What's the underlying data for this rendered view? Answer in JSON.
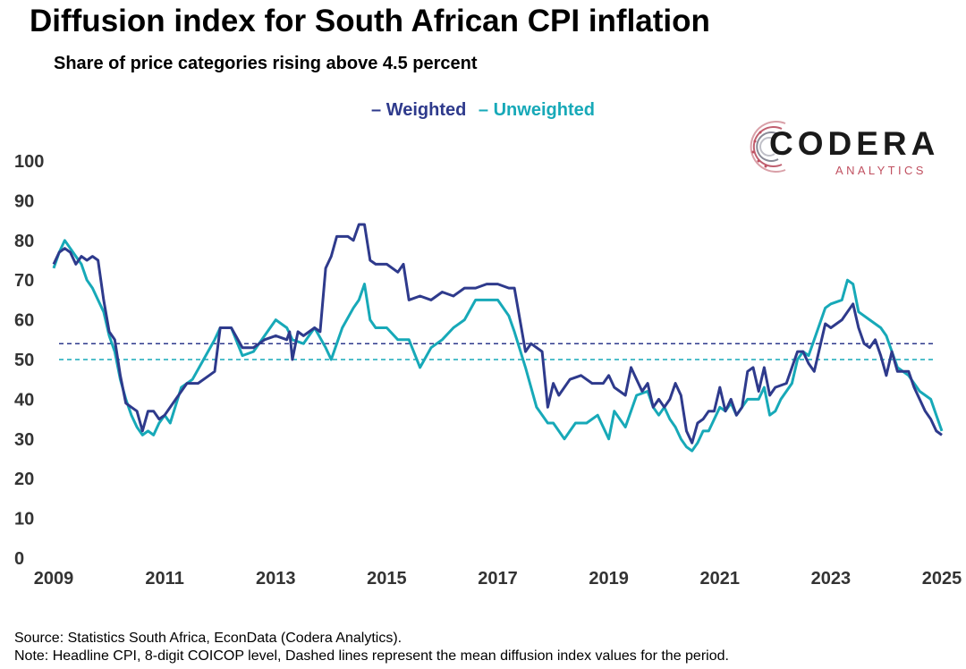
{
  "chart_data": {
    "type": "line",
    "title": "Diffusion index for South African CPI inflation",
    "subtitle": "Share of price categories rising above 4.5 percent",
    "xlim": [
      2009,
      2025
    ],
    "ylim": [
      0,
      100
    ],
    "y_ticks": [
      0,
      10,
      20,
      30,
      40,
      50,
      60,
      70,
      80,
      90,
      100
    ],
    "x_ticks": [
      2009,
      2011,
      2013,
      2015,
      2017,
      2019,
      2021,
      2023,
      2025
    ],
    "legend_position": "top-center",
    "grid": false,
    "series": [
      {
        "name": "Weighted",
        "color": "#2e3a8c",
        "points": [
          [
            2009.0,
            74
          ],
          [
            2009.1,
            77
          ],
          [
            2009.2,
            78
          ],
          [
            2009.3,
            77
          ],
          [
            2009.4,
            74
          ],
          [
            2009.5,
            76
          ],
          [
            2009.6,
            75
          ],
          [
            2009.7,
            76
          ],
          [
            2009.8,
            75
          ],
          [
            2009.9,
            65
          ],
          [
            2010.0,
            57
          ],
          [
            2010.1,
            55
          ],
          [
            2010.2,
            46
          ],
          [
            2010.3,
            39
          ],
          [
            2010.4,
            38
          ],
          [
            2010.5,
            37
          ],
          [
            2010.6,
            32
          ],
          [
            2010.7,
            37
          ],
          [
            2010.8,
            37
          ],
          [
            2010.9,
            35
          ],
          [
            2011.0,
            36
          ],
          [
            2011.2,
            40
          ],
          [
            2011.4,
            44
          ],
          [
            2011.6,
            44
          ],
          [
            2011.8,
            46
          ],
          [
            2011.9,
            47
          ],
          [
            2012.0,
            58
          ],
          [
            2012.2,
            58
          ],
          [
            2012.4,
            53
          ],
          [
            2012.6,
            53
          ],
          [
            2012.8,
            55
          ],
          [
            2013.0,
            56
          ],
          [
            2013.2,
            55
          ],
          [
            2013.25,
            57
          ],
          [
            2013.3,
            50
          ],
          [
            2013.4,
            57
          ],
          [
            2013.5,
            56
          ],
          [
            2013.7,
            58
          ],
          [
            2013.8,
            57
          ],
          [
            2013.9,
            73
          ],
          [
            2014.0,
            76
          ],
          [
            2014.1,
            81
          ],
          [
            2014.3,
            81
          ],
          [
            2014.4,
            80
          ],
          [
            2014.5,
            84
          ],
          [
            2014.6,
            84
          ],
          [
            2014.7,
            75
          ],
          [
            2014.8,
            74
          ],
          [
            2015.0,
            74
          ],
          [
            2015.2,
            72
          ],
          [
            2015.3,
            74
          ],
          [
            2015.4,
            65
          ],
          [
            2015.6,
            66
          ],
          [
            2015.8,
            65
          ],
          [
            2016.0,
            67
          ],
          [
            2016.2,
            66
          ],
          [
            2016.4,
            68
          ],
          [
            2016.6,
            68
          ],
          [
            2016.8,
            69
          ],
          [
            2017.0,
            69
          ],
          [
            2017.2,
            68
          ],
          [
            2017.3,
            68
          ],
          [
            2017.5,
            52
          ],
          [
            2017.6,
            54
          ],
          [
            2017.8,
            52
          ],
          [
            2017.9,
            38
          ],
          [
            2018.0,
            44
          ],
          [
            2018.1,
            41
          ],
          [
            2018.3,
            45
          ],
          [
            2018.5,
            46
          ],
          [
            2018.7,
            44
          ],
          [
            2018.9,
            44
          ],
          [
            2019.0,
            46
          ],
          [
            2019.1,
            43
          ],
          [
            2019.3,
            41
          ],
          [
            2019.4,
            48
          ],
          [
            2019.5,
            45
          ],
          [
            2019.6,
            42
          ],
          [
            2019.7,
            44
          ],
          [
            2019.8,
            38
          ],
          [
            2019.9,
            40
          ],
          [
            2020.0,
            38
          ],
          [
            2020.1,
            40
          ],
          [
            2020.2,
            44
          ],
          [
            2020.3,
            41
          ],
          [
            2020.4,
            32
          ],
          [
            2020.5,
            29
          ],
          [
            2020.6,
            34
          ],
          [
            2020.7,
            35
          ],
          [
            2020.8,
            37
          ],
          [
            2020.9,
            37
          ],
          [
            2021.0,
            43
          ],
          [
            2021.1,
            37
          ],
          [
            2021.2,
            40
          ],
          [
            2021.3,
            36
          ],
          [
            2021.4,
            38
          ],
          [
            2021.5,
            47
          ],
          [
            2021.6,
            48
          ],
          [
            2021.7,
            42
          ],
          [
            2021.8,
            48
          ],
          [
            2021.9,
            41
          ],
          [
            2022.0,
            43
          ],
          [
            2022.2,
            44
          ],
          [
            2022.4,
            52
          ],
          [
            2022.5,
            52
          ],
          [
            2022.6,
            49
          ],
          [
            2022.7,
            47
          ],
          [
            2022.9,
            59
          ],
          [
            2023.0,
            58
          ],
          [
            2023.2,
            60
          ],
          [
            2023.3,
            62
          ],
          [
            2023.4,
            64
          ],
          [
            2023.5,
            58
          ],
          [
            2023.6,
            54
          ],
          [
            2023.7,
            53
          ],
          [
            2023.8,
            55
          ],
          [
            2023.9,
            51
          ],
          [
            2024.0,
            46
          ],
          [
            2024.1,
            52
          ],
          [
            2024.2,
            47
          ],
          [
            2024.4,
            47
          ],
          [
            2024.5,
            43
          ],
          [
            2024.6,
            40
          ],
          [
            2024.7,
            37
          ],
          [
            2024.8,
            35
          ],
          [
            2024.9,
            32
          ],
          [
            2025.0,
            31
          ]
        ]
      },
      {
        "name": "Unweighted",
        "color": "#17a9b8",
        "points": [
          [
            2009.0,
            73
          ],
          [
            2009.1,
            77
          ],
          [
            2009.2,
            80
          ],
          [
            2009.3,
            78
          ],
          [
            2009.4,
            76
          ],
          [
            2009.5,
            74
          ],
          [
            2009.6,
            70
          ],
          [
            2009.7,
            68
          ],
          [
            2009.8,
            65
          ],
          [
            2009.9,
            62
          ],
          [
            2010.0,
            56
          ],
          [
            2010.1,
            52
          ],
          [
            2010.2,
            45
          ],
          [
            2010.3,
            40
          ],
          [
            2010.4,
            36
          ],
          [
            2010.5,
            33
          ],
          [
            2010.6,
            31
          ],
          [
            2010.7,
            32
          ],
          [
            2010.8,
            31
          ],
          [
            2010.9,
            34
          ],
          [
            2011.0,
            36
          ],
          [
            2011.1,
            34
          ],
          [
            2011.3,
            43
          ],
          [
            2011.5,
            45
          ],
          [
            2011.7,
            50
          ],
          [
            2011.9,
            55
          ],
          [
            2012.0,
            58
          ],
          [
            2012.2,
            58
          ],
          [
            2012.4,
            51
          ],
          [
            2012.6,
            52
          ],
          [
            2012.8,
            56
          ],
          [
            2013.0,
            60
          ],
          [
            2013.2,
            58
          ],
          [
            2013.3,
            55
          ],
          [
            2013.5,
            54
          ],
          [
            2013.7,
            58
          ],
          [
            2013.9,
            53
          ],
          [
            2014.0,
            50
          ],
          [
            2014.2,
            58
          ],
          [
            2014.4,
            63
          ],
          [
            2014.5,
            65
          ],
          [
            2014.6,
            69
          ],
          [
            2014.7,
            60
          ],
          [
            2014.8,
            58
          ],
          [
            2015.0,
            58
          ],
          [
            2015.2,
            55
          ],
          [
            2015.4,
            55
          ],
          [
            2015.6,
            48
          ],
          [
            2015.8,
            53
          ],
          [
            2016.0,
            55
          ],
          [
            2016.2,
            58
          ],
          [
            2016.4,
            60
          ],
          [
            2016.6,
            65
          ],
          [
            2016.8,
            65
          ],
          [
            2017.0,
            65
          ],
          [
            2017.2,
            61
          ],
          [
            2017.3,
            57
          ],
          [
            2017.5,
            48
          ],
          [
            2017.7,
            38
          ],
          [
            2017.9,
            34
          ],
          [
            2018.0,
            34
          ],
          [
            2018.2,
            30
          ],
          [
            2018.4,
            34
          ],
          [
            2018.6,
            34
          ],
          [
            2018.8,
            36
          ],
          [
            2019.0,
            30
          ],
          [
            2019.1,
            37
          ],
          [
            2019.3,
            33
          ],
          [
            2019.5,
            41
          ],
          [
            2019.7,
            42
          ],
          [
            2019.8,
            38
          ],
          [
            2019.9,
            36
          ],
          [
            2020.0,
            38
          ],
          [
            2020.1,
            35
          ],
          [
            2020.2,
            33
          ],
          [
            2020.3,
            30
          ],
          [
            2020.4,
            28
          ],
          [
            2020.5,
            27
          ],
          [
            2020.6,
            29
          ],
          [
            2020.7,
            32
          ],
          [
            2020.8,
            32
          ],
          [
            2021.0,
            38
          ],
          [
            2021.1,
            37
          ],
          [
            2021.2,
            39
          ],
          [
            2021.3,
            36
          ],
          [
            2021.5,
            40
          ],
          [
            2021.7,
            40
          ],
          [
            2021.8,
            43
          ],
          [
            2021.9,
            36
          ],
          [
            2022.0,
            37
          ],
          [
            2022.1,
            40
          ],
          [
            2022.3,
            44
          ],
          [
            2022.4,
            50
          ],
          [
            2022.5,
            52
          ],
          [
            2022.6,
            51
          ],
          [
            2022.7,
            55
          ],
          [
            2022.9,
            63
          ],
          [
            2023.0,
            64
          ],
          [
            2023.2,
            65
          ],
          [
            2023.3,
            70
          ],
          [
            2023.4,
            69
          ],
          [
            2023.5,
            62
          ],
          [
            2023.7,
            60
          ],
          [
            2023.9,
            58
          ],
          [
            2024.0,
            56
          ],
          [
            2024.2,
            48
          ],
          [
            2024.4,
            46
          ],
          [
            2024.6,
            42
          ],
          [
            2024.8,
            40
          ],
          [
            2024.9,
            36
          ],
          [
            2025.0,
            32
          ]
        ]
      }
    ],
    "reference_lines": [
      {
        "value": 54,
        "color": "#2e3a8c",
        "style": "dashed"
      },
      {
        "value": 50,
        "color": "#17a9b8",
        "style": "dashed"
      }
    ]
  },
  "logo": {
    "name": "CODERA",
    "sub": "ANALYTICS"
  },
  "footer": {
    "source": "Source: Statistics South Africa, EconData (Codera Analytics).",
    "note": "Note: Headline CPI, 8-digit COICOP level, Dashed lines represent the mean diffusion index values for the period."
  }
}
